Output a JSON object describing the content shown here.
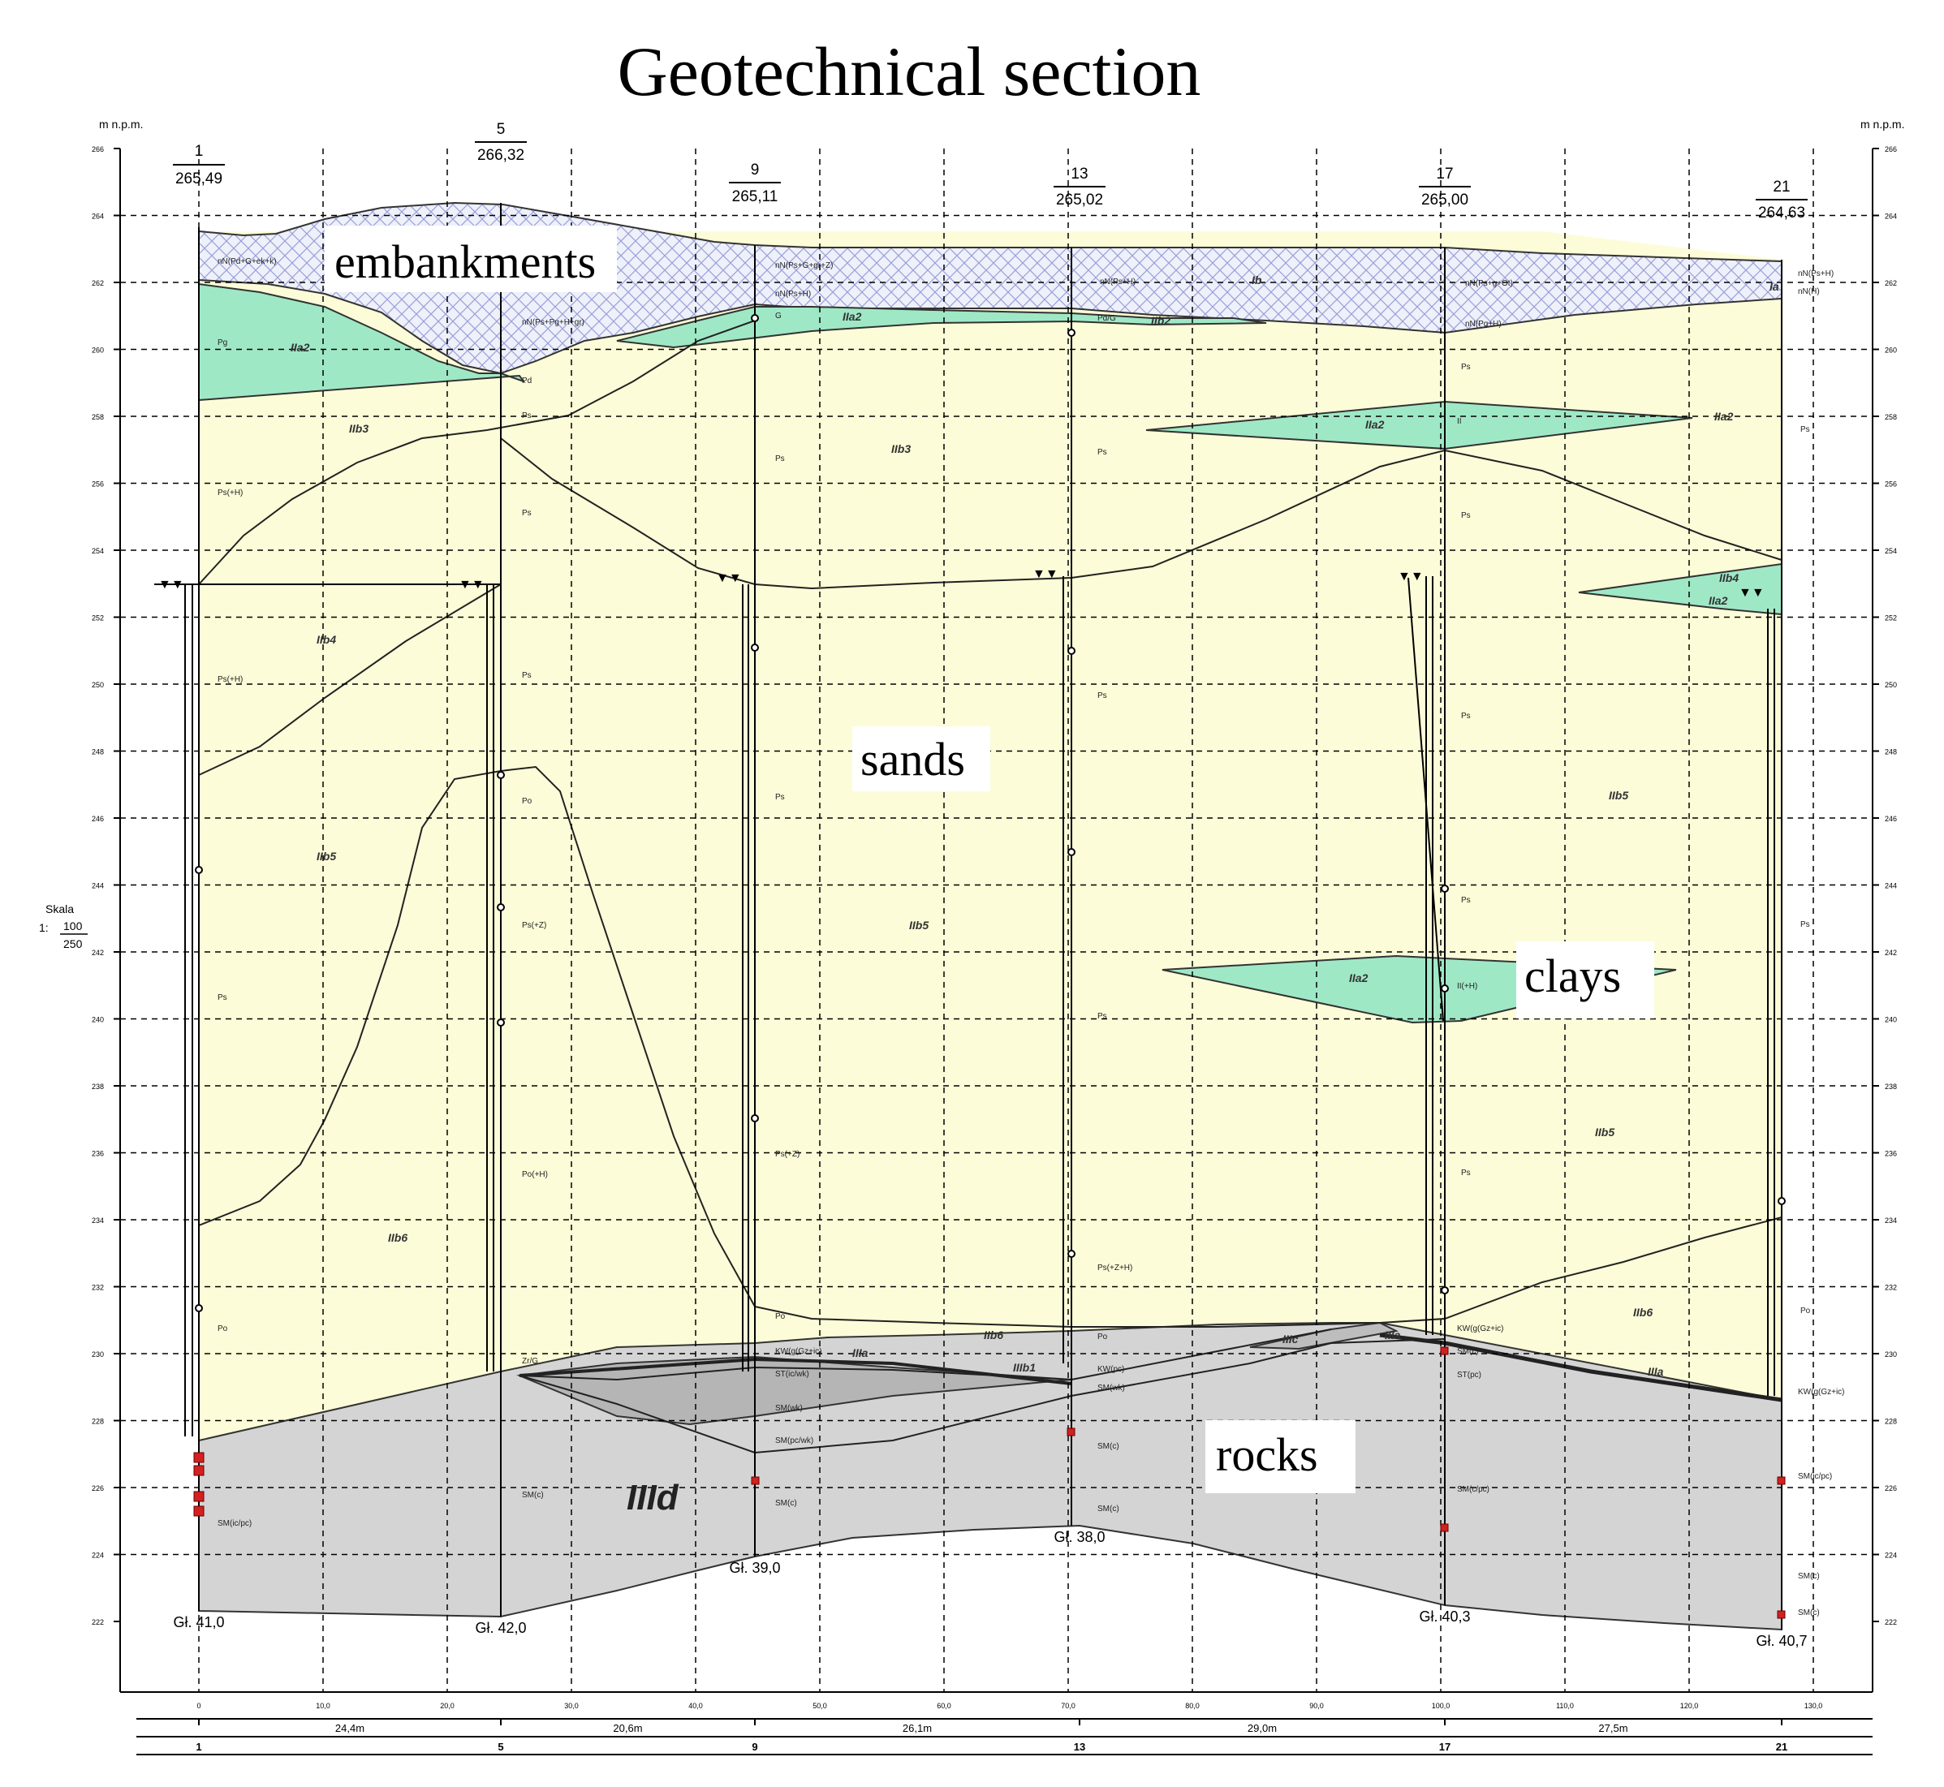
{
  "title": "Geotechnical section",
  "units_label": "m n.p.m.",
  "scale": {
    "label": "Skala",
    "prefix": "1:",
    "numerator": "100",
    "denominator": "250"
  },
  "callouts": {
    "embankments": "embankments",
    "sands": "sands",
    "clays": "clays",
    "rocks": "rocks"
  },
  "elevation_ticks": [
    "266",
    "264",
    "262",
    "260",
    "258",
    "256",
    "254",
    "252",
    "250",
    "248",
    "246",
    "244",
    "242",
    "240",
    "238",
    "236",
    "234",
    "232",
    "230",
    "228",
    "226",
    "224",
    "222"
  ],
  "distance_ticks": [
    "0",
    "10,0",
    "20,0",
    "30,0",
    "40,0",
    "50,0",
    "60,0",
    "70,0",
    "80,0",
    "90,0",
    "100,0",
    "110,0",
    "120,0",
    "130,0"
  ],
  "boreholes": [
    {
      "id": "1",
      "elevation": "265,49",
      "depth": "Gł. 41,0"
    },
    {
      "id": "5",
      "elevation": "266,32",
      "depth": "Gł. 42,0"
    },
    {
      "id": "9",
      "elevation": "265,11",
      "depth": "Gł. 39,0"
    },
    {
      "id": "13",
      "elevation": "265,02",
      "depth": "Gł. 38,0"
    },
    {
      "id": "17",
      "elevation": "265,00",
      "depth": "Gł. 40,3"
    },
    {
      "id": "21",
      "elevation": "264,63",
      "depth": "Gł. 40,7"
    }
  ],
  "spacings": [
    "24,4m",
    "20,6m",
    "26,1m",
    "29,0m",
    "27,5m"
  ],
  "layer_labels": {
    "IIa2_a": "IIa2",
    "IIa2_b": "IIa2",
    "IIa2_c": "IIa2",
    "IIa2_d": "IIa2",
    "IIa2_e": "IIa2",
    "IIa2_f": "IIa2",
    "IIb2": "IIb2",
    "IIb3_a": "IIb3",
    "IIb3_b": "IIb3",
    "IIb4_a": "IIb4",
    "IIb4_b": "IIb4",
    "IIb5_a": "IIb5",
    "IIb5_b": "IIb5",
    "IIb5_c": "IIb5",
    "IIb5_d": "IIb5",
    "IIb6_a": "IIb6",
    "IIb6_b": "IIb6",
    "IIb6_c": "IIb6",
    "IIIa_a": "IIIa",
    "IIIa_b": "IIIa",
    "IIIa_c": "IIIa",
    "IIIb1": "IIIb1",
    "IIIc": "IIIc",
    "IIId": "IIId",
    "Ib": "Ib",
    "Ia": "Ia"
  },
  "soil_codes": {
    "nN_1": "nN(Pd+G+ek+k)",
    "nN_5": "nN(Ps+Pg+H+gr)",
    "nN_9a": "nN(Ps+G+gr+Z)",
    "nN_9b": "nN(Ps+H)",
    "nN_13": "nN(Ps+H)",
    "nN_17a": "nN(Ps+g+Ot)",
    "nN_17b": "nN(Pg+H)",
    "nN_21a": "nN(Ps+H)",
    "nN_21b": "nN(H)",
    "Pg_1": "Pg",
    "Ps_H": "Ps(+H)",
    "Ps_H2": "Ps(+H)",
    "Pd": "Pd",
    "Ps": "Ps",
    "Po": "Po",
    "Po_H": "Po(+H)",
    "Ps_Z": "Ps(+Z)",
    "Ps_Z2": "Ps(+Z)",
    "Ps_ZH": "Ps(+Z+H)",
    "G": "G",
    "PdG": "Pd/G",
    "II_H": "II(+H)",
    "II": "II",
    "SM_1": "SM(ic/pc)",
    "SM_5": "SM(c)",
    "SM_9a": "SM(wk)",
    "SM_9b": "SM(pc/wk)",
    "SM_9c": "SM(c)",
    "SM_13a": "SM(wk)",
    "SM_13b": "SM(c)",
    "SM_17a": "SM(c)",
    "SM_17b": "SM(c/pc)",
    "SM_21a": "SM(ic/pc)",
    "SM_21b": "SM(c)",
    "SM_21c": "SM(c)",
    "KW_9": "KW(g(Gz+ic)",
    "ST_9": "ST(ic/wk)",
    "KW_13": "KW(pc)",
    "KW_17": "KW(g(Gz+ic)",
    "ST_17": "ST(pc)",
    "KW_21": "KW(g(Gz+ic)",
    "ZrG": "Zr/G"
  },
  "colors": {
    "sands": "#fcfcd8",
    "clays": "#9fe8c6",
    "rocks": "#d4d4d4",
    "rocks_dark": "#b5b5b5",
    "embankment_hatch": "#9aa0d8",
    "grid": "#000000",
    "sample": "#d42020"
  }
}
